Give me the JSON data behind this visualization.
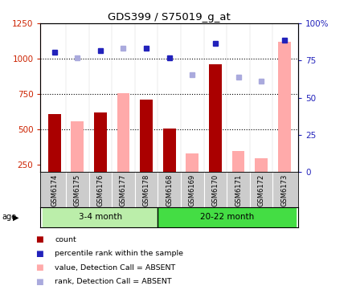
{
  "title": "GDS399 / S75019_g_at",
  "samples": [
    "GSM6174",
    "GSM6175",
    "GSM6176",
    "GSM6177",
    "GSM6178",
    "GSM6168",
    "GSM6169",
    "GSM6170",
    "GSM6171",
    "GSM6172",
    "GSM6173"
  ],
  "count_values": [
    610,
    null,
    620,
    null,
    710,
    510,
    null,
    960,
    null,
    null,
    null
  ],
  "absent_value_bars": [
    null,
    560,
    null,
    755,
    null,
    null,
    330,
    null,
    350,
    295,
    1120
  ],
  "rank_dots_dark": [
    1045,
    null,
    1060,
    null,
    1075,
    1005,
    null,
    1110,
    null,
    null,
    1130
  ],
  "rank_dots_light": [
    null,
    1005,
    null,
    1075,
    null,
    null,
    890,
    null,
    870,
    845,
    null
  ],
  "ylim_left": [
    200,
    1250
  ],
  "ylim_right": [
    0,
    100
  ],
  "yticks_left": [
    250,
    500,
    750,
    1000,
    1250
  ],
  "yticks_right": [
    0,
    25,
    50,
    75,
    100
  ],
  "age_groups": [
    {
      "label": "3-4 month",
      "start": 0,
      "end": 5,
      "color": "#bbeeaa"
    },
    {
      "label": "20-22 month",
      "start": 5,
      "end": 11,
      "color": "#44dd44"
    }
  ],
  "bar_width": 0.55,
  "count_color": "#aa0000",
  "absent_value_color": "#ffaaaa",
  "rank_dark_color": "#2222bb",
  "rank_light_color": "#aaaadd",
  "bg_color": "#ffffff",
  "xlabel_color": "#cc2200",
  "ylabel_right_color": "#2222bb",
  "xlabels_bg": "#cccccc",
  "divider_color": "#ffffff"
}
